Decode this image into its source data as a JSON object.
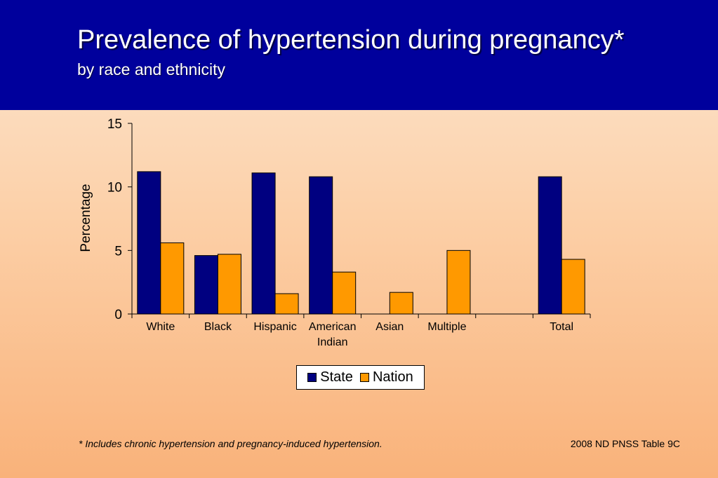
{
  "header": {
    "title": "Prevalence of hypertension during pregnancy*",
    "subtitle": "by race and ethnicity"
  },
  "chart_data": {
    "type": "bar",
    "categories": [
      [
        "White"
      ],
      [
        "Black"
      ],
      [
        "Hispanic"
      ],
      [
        "American",
        "Indian"
      ],
      [
        "Asian"
      ],
      [
        "Multiple"
      ],
      [
        ""
      ],
      [
        "Total"
      ]
    ],
    "series": [
      {
        "name": "State",
        "color": "#000080",
        "values": [
          11.2,
          4.6,
          11.1,
          10.8,
          null,
          null,
          null,
          10.8
        ]
      },
      {
        "name": "Nation",
        "color": "#ff9900",
        "values": [
          5.6,
          4.7,
          1.6,
          3.3,
          1.7,
          5.0,
          null,
          4.3
        ]
      }
    ],
    "ylabel": "Percentage",
    "ylim": [
      0,
      15
    ],
    "yticks": [
      0,
      5,
      10,
      15
    ],
    "grid": false,
    "legend": "bottom"
  },
  "footer": {
    "footnote": "*  Includes chronic hypertension and pregnancy-induced hypertension.",
    "source": "2008 ND PNSS Table 9C"
  }
}
